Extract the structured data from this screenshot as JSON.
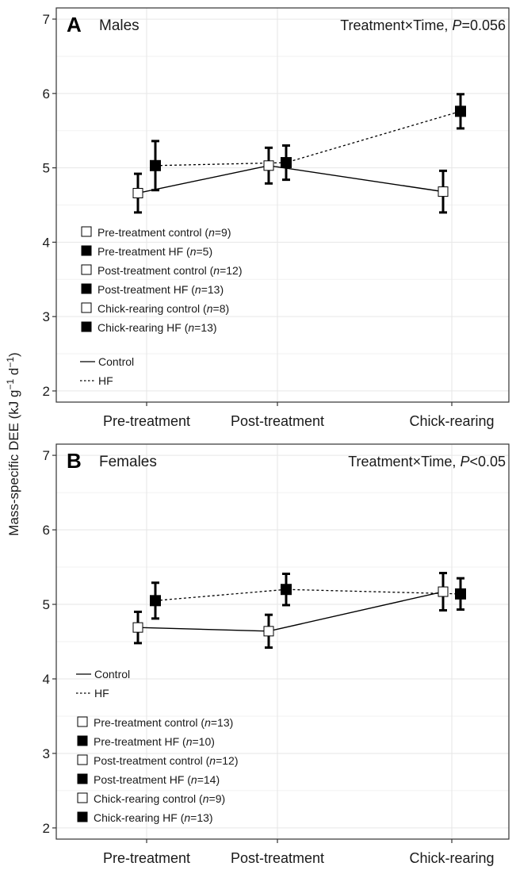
{
  "ylabel": {
    "main": "Mass-specific DEE (kJ g",
    "sup1": "−1",
    "mid": " d",
    "sup2": "−1",
    "end": ")"
  },
  "chart_data": [
    {
      "type": "line",
      "panel_letter": "A",
      "panel_title": "Males",
      "annotation": {
        "prefix": "Treatment×Time, ",
        "p": "P",
        "rest": "=0.056"
      },
      "categories": [
        "Pre-treatment",
        "Post-treatment",
        "Chick-rearing"
      ],
      "ylim": [
        1.85,
        7.15
      ],
      "yticks": [
        2,
        3,
        4,
        5,
        6,
        7
      ],
      "grid": true,
      "series": [
        {
          "name": "Control",
          "line": "solid",
          "marker": "open-square",
          "values": [
            4.66,
            5.03,
            4.68
          ],
          "err": [
            0.26,
            0.24,
            0.28
          ]
        },
        {
          "name": "HF",
          "line": "dashed",
          "marker": "filled-square",
          "values": [
            5.03,
            5.07,
            5.76
          ],
          "err": [
            0.33,
            0.23,
            0.23
          ]
        }
      ],
      "legend_groups": [
        {
          "marker": "open",
          "label": "Pre-treatment control (",
          "n": "n",
          "rest": "=9)"
        },
        {
          "marker": "filled",
          "label": "Pre-treatment HF (",
          "n": "n",
          "rest": "=5)"
        },
        {
          "marker": "open",
          "label": "Post-treatment control (",
          "n": "n",
          "rest": "=12)"
        },
        {
          "marker": "filled",
          "label": "Post-treatment HF (",
          "n": "n",
          "rest": "=13)"
        },
        {
          "marker": "open",
          "label": "Chick-rearing control (",
          "n": "n",
          "rest": "=8)"
        },
        {
          "marker": "filled",
          "label": "Chick-rearing HF (",
          "n": "n",
          "rest": "=13)"
        }
      ],
      "legend_lines": [
        {
          "style": "solid",
          "label": "Control"
        },
        {
          "style": "dashed",
          "label": "HF"
        }
      ]
    },
    {
      "type": "line",
      "panel_letter": "B",
      "panel_title": "Females",
      "annotation": {
        "prefix": "Treatment×Time, ",
        "p": "P",
        "rest": "<0.05"
      },
      "categories": [
        "Pre-treatment",
        "Post-treatment",
        "Chick-rearing"
      ],
      "ylim": [
        1.85,
        7.15
      ],
      "yticks": [
        2,
        3,
        4,
        5,
        6,
        7
      ],
      "grid": true,
      "series": [
        {
          "name": "Control",
          "line": "solid",
          "marker": "open-square",
          "values": [
            4.69,
            4.64,
            5.17
          ],
          "err": [
            0.21,
            0.22,
            0.25
          ]
        },
        {
          "name": "HF",
          "line": "dashed",
          "marker": "filled-square",
          "values": [
            5.05,
            5.2,
            5.14
          ],
          "err": [
            0.24,
            0.21,
            0.21
          ]
        }
      ],
      "legend_lines": [
        {
          "style": "solid",
          "label": "Control"
        },
        {
          "style": "dashed",
          "label": "HF"
        }
      ],
      "legend_groups": [
        {
          "marker": "open",
          "label": "Pre-treatment control (",
          "n": "n",
          "rest": "=13)"
        },
        {
          "marker": "filled",
          "label": "Pre-treatment HF (",
          "n": "n",
          "rest": "=10)"
        },
        {
          "marker": "open",
          "label": "Post-treatment control (",
          "n": "n",
          "rest": "=12)"
        },
        {
          "marker": "filled",
          "label": "Post-treatment HF (",
          "n": "n",
          "rest": "=14)"
        },
        {
          "marker": "open",
          "label": "Chick-rearing control (",
          "n": "n",
          "rest": "=9)"
        },
        {
          "marker": "filled",
          "label": "Chick-rearing HF (",
          "n": "n",
          "rest": "=13)"
        }
      ]
    }
  ]
}
